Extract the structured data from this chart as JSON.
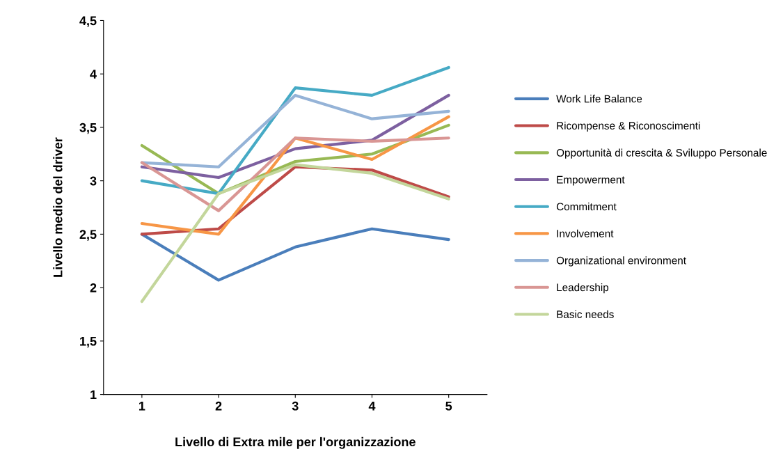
{
  "chart_data": {
    "type": "line",
    "xlabel": "Livello di Extra mile per l'organizzazione",
    "ylabel": "Livello medio del driver",
    "categories": [
      "1",
      "2",
      "3",
      "4",
      "5"
    ],
    "ylim": [
      1,
      4.5
    ],
    "yticks": [
      1,
      {
        "value": 1.5,
        "label": "1,5"
      },
      2,
      {
        "value": 2.5,
        "label": "2,5"
      },
      3,
      {
        "value": 3.5,
        "label": "3,5"
      },
      4,
      {
        "value": 4.5,
        "label": "4,5"
      }
    ],
    "legend": "right",
    "grid": false,
    "marker": "none",
    "line_style": "solid",
    "series": [
      {
        "name": "Work Life Balance",
        "color": "#4a7ebb",
        "values": [
          2.5,
          2.07,
          2.38,
          2.55,
          2.45
        ]
      },
      {
        "name": "Ricompense & Riconoscimenti",
        "color": "#be4b48",
        "values": [
          2.5,
          2.55,
          3.13,
          3.1,
          2.85
        ]
      },
      {
        "name": "Opportunità di crescita & Sviluppo Personale",
        "color": "#98b954",
        "values": [
          3.33,
          2.88,
          3.18,
          3.25,
          3.52
        ]
      },
      {
        "name": "Empowerment",
        "color": "#7d60a0",
        "values": [
          3.13,
          3.03,
          3.3,
          3.38,
          3.8
        ]
      },
      {
        "name": "Commitment",
        "color": "#46aac5",
        "values": [
          3.0,
          2.88,
          3.87,
          3.8,
          4.06
        ]
      },
      {
        "name": "Involvement",
        "color": "#f79646",
        "values": [
          2.6,
          2.5,
          3.4,
          3.2,
          3.6
        ]
      },
      {
        "name": "Organizational environment",
        "color": "#95b3d7",
        "values": [
          3.17,
          3.13,
          3.8,
          3.58,
          3.65
        ]
      },
      {
        "name": "Leadership",
        "color": "#d99694",
        "values": [
          3.17,
          2.72,
          3.4,
          3.37,
          3.4
        ]
      },
      {
        "name": "Basic needs",
        "color": "#c3d69b",
        "values": [
          1.87,
          2.88,
          3.15,
          3.07,
          2.83
        ]
      }
    ]
  }
}
